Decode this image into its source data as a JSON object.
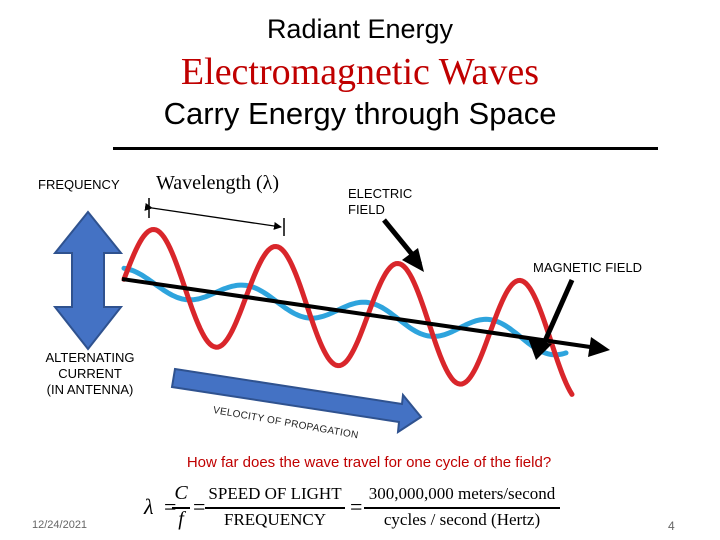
{
  "titles": {
    "line1": "Radiant Energy",
    "line2": "Electromagnetic Waves",
    "line3": "Carry Energy through Space"
  },
  "labels": {
    "frequency": "FREQUENCY",
    "wavelength": "Wavelength (λ)",
    "electric_field": [
      "ELECTRIC",
      "FIELD"
    ],
    "magnetic_field": "MAGNETIC FIELD",
    "alternating_current": [
      "ALTERNATING",
      "CURRENT",
      "(IN ANTENNA)"
    ],
    "velocity": "VELOCITY OF PROPAGATION"
  },
  "question": "How far does the wave travel for one cycle of the field?",
  "formula": {
    "lambda": "λ",
    "equals": "=",
    "c": "C",
    "f": "f",
    "speed_of_light": "SPEED OF LIGHT",
    "frequency": "FREQUENCY",
    "meters": "300,000,000 meters/second",
    "cycles": "cycles / second (Hertz)"
  },
  "footer": {
    "date": "12/24/2021",
    "page": "4"
  },
  "colors": {
    "title_red": "#c00000",
    "electric_wave": "#d9262b",
    "magnetic_wave": "#2ea4dd",
    "arrow_blue": "#4472c4",
    "arrow_outline": "#2f528f"
  }
}
